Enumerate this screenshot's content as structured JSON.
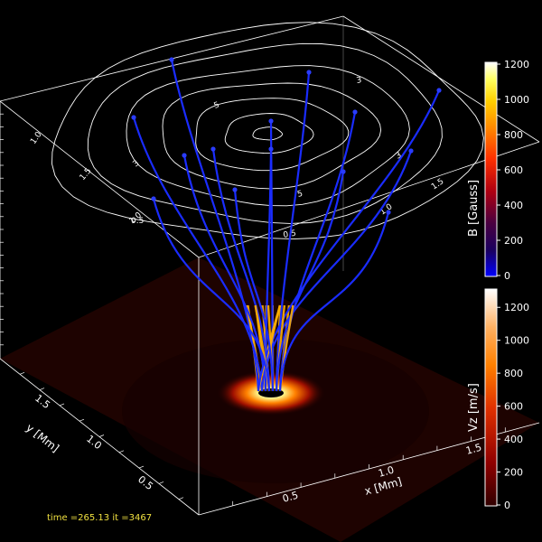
{
  "chart_data": [
    {
      "type": "scatter",
      "title": "",
      "axes": {
        "x": {
          "label": "x [Mm]",
          "ticks": [
            0.5,
            1.0,
            1.5
          ]
        },
        "y": {
          "label": "y [Mm]",
          "ticks": [
            0.5,
            1.0,
            1.5
          ]
        }
      },
      "top_contours": {
        "levels_labeled": [
          0.5,
          1.0,
          1.5,
          3,
          5
        ],
        "label_text": [
          "1.0",
          "1.5",
          "1.0",
          "0.5",
          "3",
          "3",
          "3",
          "5",
          "5",
          "0.5",
          "1.0",
          "1.5"
        ]
      },
      "field_lines": {
        "count": 14,
        "color": "#1a2cff"
      }
    },
    {
      "type": "heatmap",
      "colorbar": "B",
      "label": "B [Gauss]",
      "range": [
        0,
        1200
      ],
      "ticks": [
        0,
        200,
        400,
        600,
        800,
        1000,
        1200
      ]
    },
    {
      "type": "heatmap",
      "colorbar": "Vz",
      "label": "Vz [m/s]",
      "range": [
        0,
        1300
      ],
      "ticks": [
        0,
        200,
        400,
        600,
        800,
        1000,
        1200
      ]
    }
  ],
  "readout": {
    "time_label": "time =",
    "time_value": "265.13",
    "it_label": "it =",
    "it_value": "3467"
  }
}
